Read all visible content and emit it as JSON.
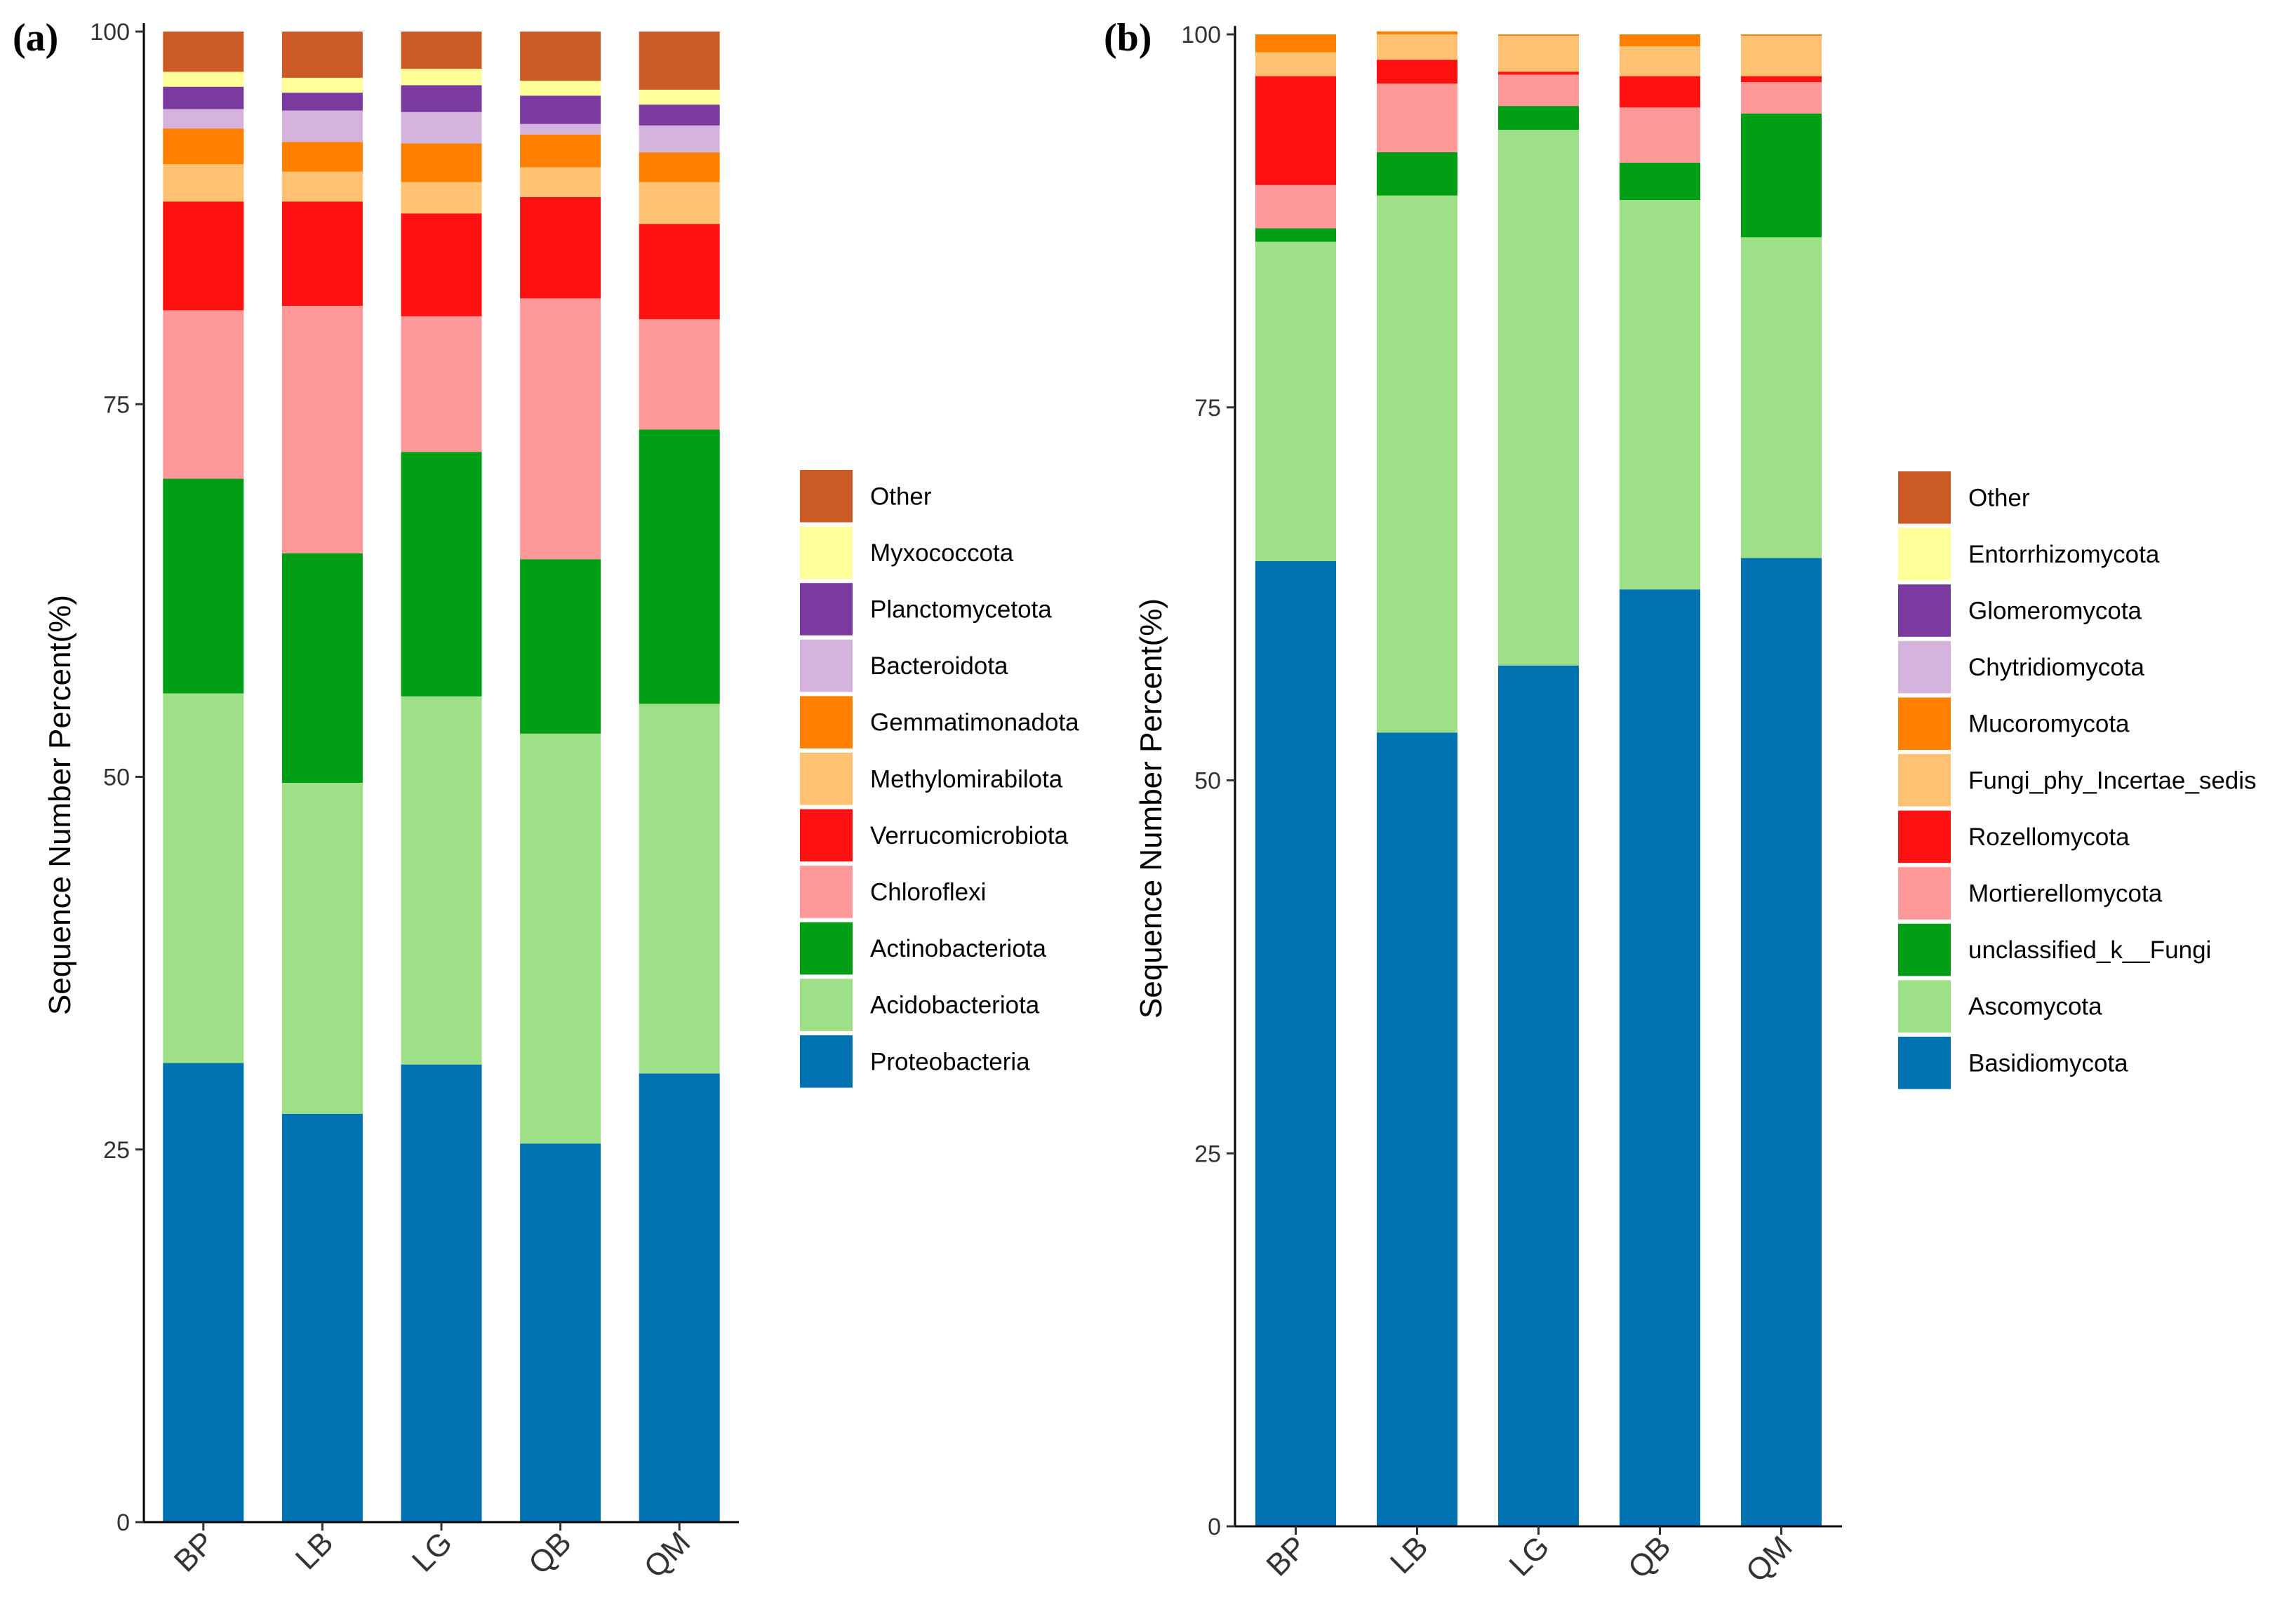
{
  "chart_data": [
    {
      "type": "bar",
      "stacked": true,
      "panel_label": "(a)",
      "ylabel": "Sequence Number Percent(%)",
      "xlabel": "",
      "ylim": [
        0,
        100
      ],
      "yticks": [
        0,
        25,
        50,
        75,
        100
      ],
      "categories": [
        "BP",
        "LB",
        "LG",
        "QB",
        "QM"
      ],
      "legend_position": "right",
      "series": [
        {
          "name": "Proteobacteria",
          "color": "#0072B2",
          "values": [
            30.8,
            27.4,
            30.7,
            25.4,
            30.1
          ]
        },
        {
          "name": "Acidobacteriota",
          "color": "#9DE087",
          "values": [
            24.8,
            22.2,
            24.7,
            27.5,
            24.8
          ]
        },
        {
          "name": "Actinobacteriota",
          "color": "#009E15",
          "values": [
            14.4,
            15.4,
            16.4,
            11.7,
            18.4
          ]
        },
        {
          "name": "Chloroflexi",
          "color": "#FF9999",
          "values": [
            11.3,
            16.6,
            9.1,
            17.5,
            7.4
          ]
        },
        {
          "name": "Verrucomicrobiota",
          "color": "#FF1111",
          "values": [
            7.3,
            7.0,
            6.9,
            6.8,
            6.4
          ]
        },
        {
          "name": "Methylomirabilota",
          "color": "#FFC273",
          "values": [
            2.5,
            2.0,
            2.1,
            2.0,
            2.8
          ]
        },
        {
          "name": "Gemmatimonadota",
          "color": "#FF8000",
          "values": [
            2.4,
            2.0,
            2.6,
            2.2,
            2.0
          ]
        },
        {
          "name": "Bacteroidota",
          "color": "#D4B4DD",
          "values": [
            1.3,
            2.1,
            2.1,
            0.7,
            1.8
          ]
        },
        {
          "name": "Planctomycetota",
          "color": "#7A3A9F",
          "values": [
            1.5,
            1.2,
            1.8,
            1.9,
            1.4
          ]
        },
        {
          "name": "Myxococcota",
          "color": "#FFFF99",
          "values": [
            1.0,
            1.0,
            1.1,
            1.0,
            1.0
          ]
        },
        {
          "name": "Other",
          "color": "#CC5A24",
          "values": [
            2.7,
            3.1,
            2.5,
            3.3,
            3.9
          ]
        }
      ]
    },
    {
      "type": "bar",
      "stacked": true,
      "panel_label": "(b)",
      "ylabel": "Sequence Number Percent(%)",
      "xlabel": "",
      "ylim": [
        0,
        100
      ],
      "yticks": [
        0,
        25,
        50,
        75,
        100
      ],
      "categories": [
        "BP",
        "LB",
        "LG",
        "QB",
        "QM"
      ],
      "legend_position": "right",
      "series": [
        {
          "name": "Basidiomycota",
          "color": "#0072B2",
          "values": [
            64.7,
            53.2,
            57.7,
            62.8,
            64.9
          ]
        },
        {
          "name": "Ascomycota",
          "color": "#9DE087",
          "values": [
            21.4,
            36.0,
            35.9,
            26.1,
            21.5
          ]
        },
        {
          "name": "unclassified_k__Fungi",
          "color": "#009E15",
          "values": [
            0.9,
            2.9,
            1.6,
            2.5,
            8.3
          ]
        },
        {
          "name": "Mortierellomycota",
          "color": "#FF9999",
          "values": [
            2.9,
            4.6,
            2.1,
            3.7,
            2.1
          ]
        },
        {
          "name": "Rozellomycota",
          "color": "#FF1111",
          "values": [
            7.3,
            1.6,
            0.2,
            2.1,
            0.4
          ]
        },
        {
          "name": "Fungi_phy_Incertae_sedis",
          "color": "#FFC273",
          "values": [
            1.6,
            1.7,
            2.4,
            2.0,
            2.7
          ]
        },
        {
          "name": "Mucoromycota",
          "color": "#FF8000",
          "values": [
            1.2,
            0.2,
            0.1,
            0.8,
            0.1
          ]
        },
        {
          "name": "Chytridiomycota",
          "color": "#D4B4DD",
          "values": [
            0,
            0,
            0,
            0,
            0
          ]
        },
        {
          "name": "Glomeromycota",
          "color": "#7A3A9F",
          "values": [
            0,
            0,
            0,
            0,
            0
          ]
        },
        {
          "name": "Entorrhizomycota",
          "color": "#FFFF99",
          "values": [
            0,
            0,
            0,
            0,
            0
          ]
        },
        {
          "name": "Other",
          "color": "#CC5A24",
          "values": [
            0,
            0,
            0,
            0,
            0
          ]
        }
      ]
    }
  ]
}
